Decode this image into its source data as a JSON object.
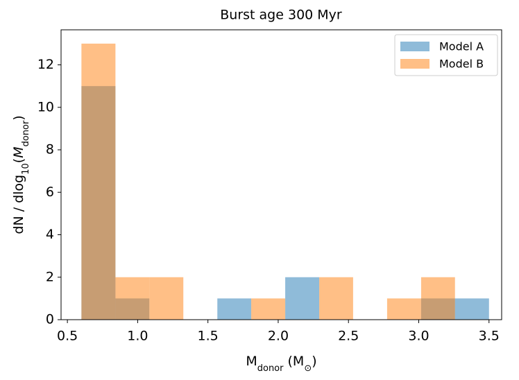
{
  "chart_data": {
    "type": "histogram",
    "title": "Burst age 300 Myr",
    "x_label": [
      "M",
      "donor",
      " (M",
      "⊙",
      ")"
    ],
    "y_label": [
      "dN / dlog",
      "10",
      "(",
      "M",
      "donor",
      ")"
    ],
    "bins": [
      0.6,
      0.842,
      1.083,
      1.325,
      1.567,
      1.808,
      2.05,
      2.292,
      2.533,
      2.775,
      3.017,
      3.258,
      3.5
    ],
    "series": [
      {
        "name": "Model A",
        "color": "#1f77b4",
        "values": [
          11,
          1,
          0,
          0,
          1,
          0,
          2,
          0,
          0,
          0,
          1,
          1
        ]
      },
      {
        "name": "Model B",
        "color": "#ff7f0e",
        "values": [
          13,
          2,
          2,
          0,
          0,
          1,
          0,
          2,
          0,
          1,
          2,
          0
        ]
      }
    ],
    "xlim": [
      0.455,
      3.59
    ],
    "ylim": [
      0,
      13.65
    ],
    "xticks": [
      0.5,
      {
        "value": 1,
        "label": "1.0"
      },
      1.5,
      {
        "value": 2,
        "label": "2.0"
      },
      2.5,
      {
        "value": 3,
        "label": "3.0"
      },
      3.5
    ],
    "yticks": [
      0,
      2,
      4,
      6,
      8,
      10,
      12
    ],
    "legend": "upper right",
    "opacity": 0.5
  }
}
